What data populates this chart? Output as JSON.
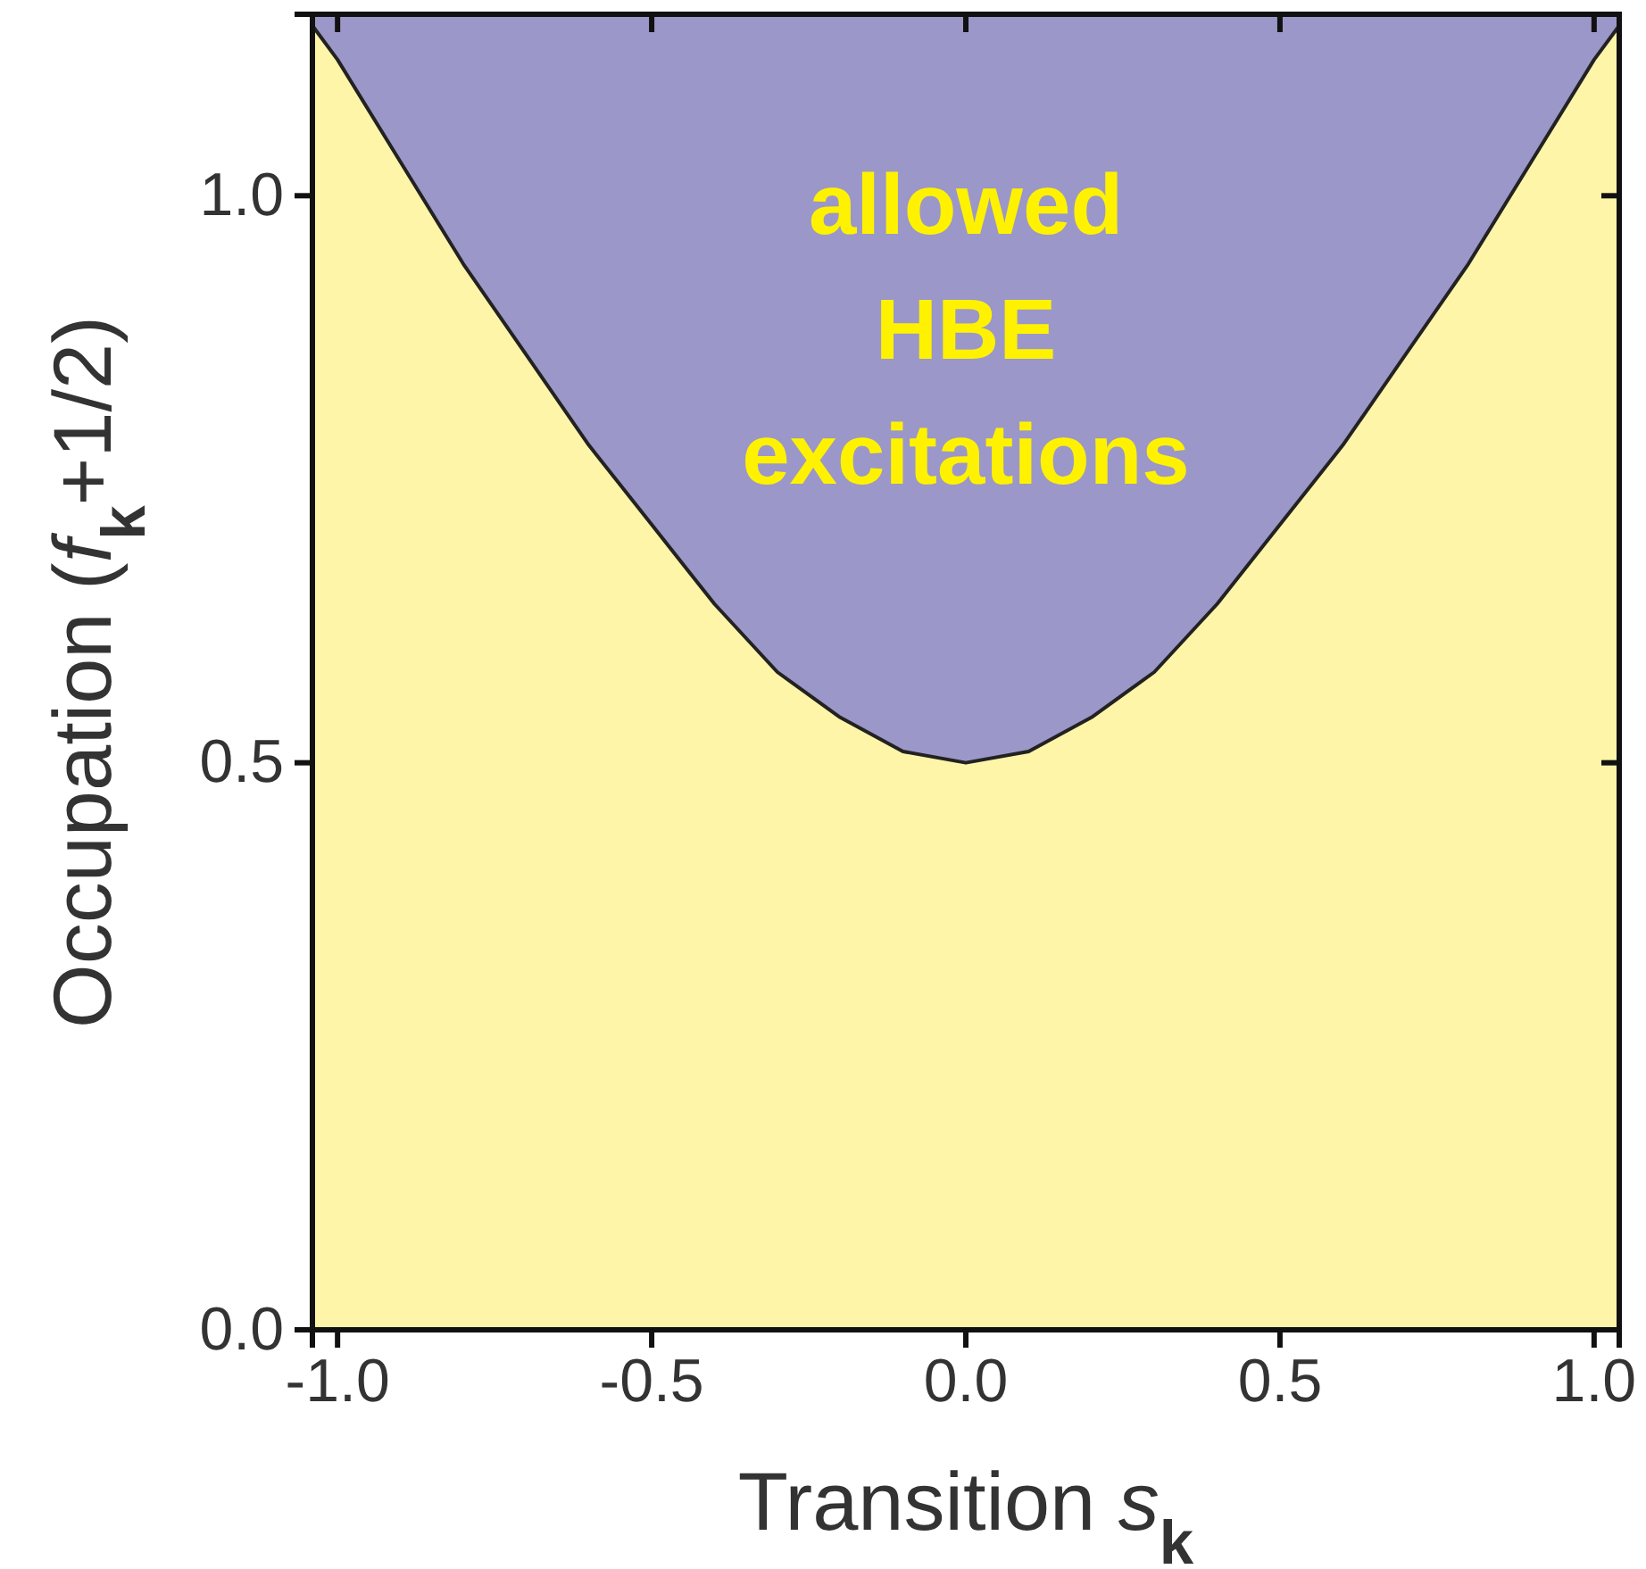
{
  "chart_data": {
    "type": "area",
    "xlabel": "Transition s$_{k}$",
    "ylabel": "Occupation (f$_{k}$+1/2)",
    "x": [
      -1.04,
      -1.0,
      -0.9,
      -0.8,
      -0.7,
      -0.6,
      -0.5,
      -0.4,
      -0.3,
      -0.2,
      -0.1,
      0.0,
      0.1,
      0.2,
      0.3,
      0.4,
      0.5,
      0.6,
      0.7,
      0.8,
      0.9,
      1.0,
      1.04
    ],
    "series": [
      {
        "color": "#fff5a8",
        "values": [
          1.15,
          1.12,
          1.03,
          0.94,
          0.86,
          0.78,
          0.71,
          0.64,
          0.58,
          0.54,
          0.51,
          0.5,
          0.51,
          0.54,
          0.58,
          0.64,
          0.71,
          0.78,
          0.86,
          0.94,
          1.03,
          1.12,
          1.15
        ]
      }
    ],
    "xlim": [
      -1.04,
      1.04
    ],
    "ylim": [
      0,
      1.16
    ],
    "bands": [
      {
        "axis": "x",
        "from": -1.04,
        "to": 1.04,
        "color": "#9b97c8"
      }
    ],
    "xticks": [
      {
        "value": -1,
        "label": "-1.0"
      },
      {
        "value": -0.5,
        "label": "-0.5"
      },
      {
        "value": 0,
        "label": "0.0"
      },
      {
        "value": 0.5,
        "label": "0.5"
      },
      {
        "value": 1,
        "label": "1.0"
      }
    ],
    "yticks": [
      {
        "value": 0,
        "label": "0.0"
      },
      {
        "value": 0.5,
        "label": "0.5"
      },
      {
        "value": 1,
        "label": "1.0"
      }
    ],
    "annotations": [
      "allowed HBE excitations"
    ]
  }
}
